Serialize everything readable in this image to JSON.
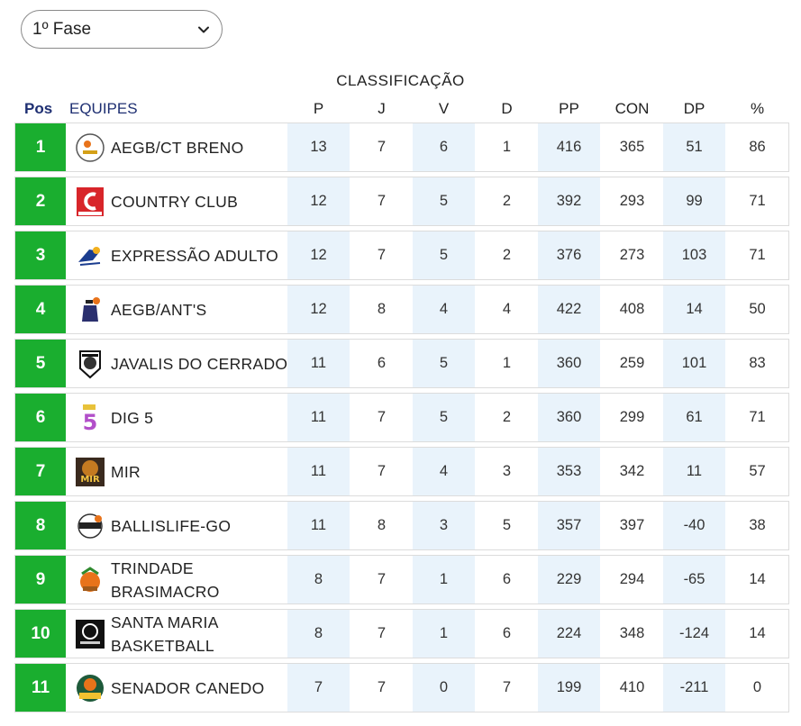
{
  "phase_select": {
    "value": "1º Fase"
  },
  "caption": "CLASSIFICAÇÃO",
  "headers": {
    "pos": "Pos",
    "team": "EQUIPES",
    "cols": [
      "P",
      "J",
      "V",
      "D",
      "PP",
      "CON",
      "DP",
      "%"
    ]
  },
  "rows": [
    {
      "pos": "1",
      "team": "AEGB/CT BRENO",
      "logo": "aegb-ct-breno-logo",
      "stats": [
        "13",
        "7",
        "6",
        "1",
        "416",
        "365",
        "51",
        "86"
      ]
    },
    {
      "pos": "2",
      "team": "COUNTRY CLUB",
      "logo": "country-club-logo",
      "stats": [
        "12",
        "7",
        "5",
        "2",
        "392",
        "293",
        "99",
        "71"
      ]
    },
    {
      "pos": "3",
      "team": "EXPRESSÃO ADULTO",
      "logo": "expressao-adulto-logo",
      "stats": [
        "12",
        "7",
        "5",
        "2",
        "376",
        "273",
        "103",
        "71"
      ]
    },
    {
      "pos": "4",
      "team": "AEGB/ANT'S",
      "logo": "aegb-ants-logo",
      "stats": [
        "12",
        "8",
        "4",
        "4",
        "422",
        "408",
        "14",
        "50"
      ]
    },
    {
      "pos": "5",
      "team": "JAVALIS DO CERRADO",
      "logo": "javalis-do-cerrado-logo",
      "stats": [
        "11",
        "6",
        "5",
        "1",
        "360",
        "259",
        "101",
        "83"
      ]
    },
    {
      "pos": "6",
      "team": "DIG 5",
      "logo": "dig-5-logo",
      "stats": [
        "11",
        "7",
        "5",
        "2",
        "360",
        "299",
        "61",
        "71"
      ]
    },
    {
      "pos": "7",
      "team": "MIR",
      "logo": "mir-logo",
      "stats": [
        "11",
        "7",
        "4",
        "3",
        "353",
        "342",
        "11",
        "57"
      ]
    },
    {
      "pos": "8",
      "team": "BALLISLIFE-GO",
      "logo": "ballislife-go-logo",
      "stats": [
        "11",
        "8",
        "3",
        "5",
        "357",
        "397",
        "-40",
        "38"
      ]
    },
    {
      "pos": "9",
      "team": "TRINDADE BRASIMACRO",
      "logo": "trindade-brasimacro-logo",
      "stats": [
        "8",
        "7",
        "1",
        "6",
        "229",
        "294",
        "-65",
        "14"
      ]
    },
    {
      "pos": "10",
      "team": "SANTA MARIA BASKETBALL",
      "logo": "santa-maria-basketball-logo",
      "stats": [
        "8",
        "7",
        "1",
        "6",
        "224",
        "348",
        "-124",
        "14"
      ]
    },
    {
      "pos": "11",
      "team": "SENADOR CANEDO",
      "logo": "senador-canedo-logo",
      "stats": [
        "7",
        "7",
        "0",
        "7",
        "199",
        "410",
        "-211",
        "0"
      ]
    }
  ],
  "colors": {
    "pos_bg": "#1aae2f",
    "header_blue": "#1e2f72",
    "shade": "#e9f3fb"
  }
}
